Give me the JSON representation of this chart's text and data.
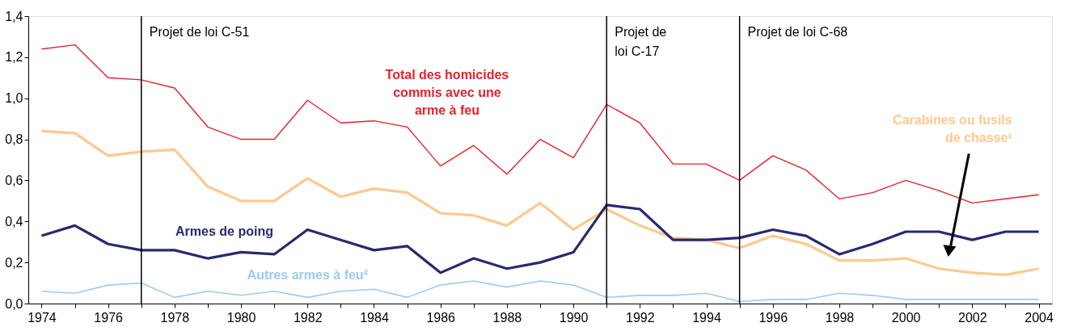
{
  "chart_data": {
    "type": "line",
    "x": [
      1974,
      1975,
      1976,
      1977,
      1978,
      1979,
      1980,
      1981,
      1982,
      1983,
      1984,
      1985,
      1986,
      1987,
      1988,
      1989,
      1990,
      1991,
      1992,
      1993,
      1994,
      1995,
      1996,
      1997,
      1998,
      1999,
      2000,
      2001,
      2002,
      2003,
      2004
    ],
    "series": [
      {
        "name": "Total des homicides commis avec une arme à feu",
        "color": "#e8202a",
        "values": [
          1.24,
          1.26,
          1.1,
          1.09,
          1.05,
          0.86,
          0.8,
          0.8,
          0.99,
          0.88,
          0.89,
          0.86,
          0.67,
          0.77,
          0.63,
          0.8,
          0.71,
          0.97,
          0.88,
          0.68,
          0.68,
          0.6,
          0.72,
          0.65,
          0.51,
          0.54,
          0.6,
          0.55,
          0.49,
          0.51,
          0.53
        ]
      },
      {
        "name": "Carabines ou fusils de chasse¹",
        "color": "#fdc98f",
        "values": [
          0.84,
          0.83,
          0.72,
          0.74,
          0.75,
          0.57,
          0.5,
          0.5,
          0.61,
          0.52,
          0.56,
          0.54,
          0.44,
          0.43,
          0.38,
          0.49,
          0.36,
          0.46,
          0.38,
          0.32,
          0.31,
          0.27,
          0.33,
          0.29,
          0.21,
          0.21,
          0.22,
          0.17,
          0.15,
          0.14,
          0.17
        ]
      },
      {
        "name": "Armes de poing",
        "color": "#262a6e",
        "values": [
          0.33,
          0.38,
          0.29,
          0.26,
          0.26,
          0.22,
          0.25,
          0.24,
          0.36,
          0.31,
          0.26,
          0.28,
          0.15,
          0.22,
          0.17,
          0.2,
          0.25,
          0.48,
          0.46,
          0.31,
          0.31,
          0.32,
          0.36,
          0.33,
          0.24,
          0.29,
          0.35,
          0.35,
          0.31,
          0.35,
          0.35
        ]
      },
      {
        "name": "Autres armes à feu²",
        "color": "#9ecbee",
        "values": [
          0.06,
          0.05,
          0.09,
          0.1,
          0.03,
          0.06,
          0.04,
          0.06,
          0.03,
          0.06,
          0.07,
          0.03,
          0.09,
          0.11,
          0.08,
          0.11,
          0.09,
          0.03,
          0.04,
          0.04,
          0.05,
          0.01,
          0.02,
          0.02,
          0.05,
          0.04,
          0.02,
          0.02,
          0.02,
          0.02,
          0.02
        ]
      }
    ],
    "ref_lines": [
      {
        "axis": "x",
        "value": 1977,
        "label": "Projet de loi C-51",
        "color": "#000000"
      },
      {
        "axis": "x",
        "value": 1991,
        "label": "Projet de\nloi C-17",
        "color": "#000000"
      },
      {
        "axis": "x",
        "value": 1995,
        "label": "Projet de loi C-68",
        "color": "#000000"
      }
    ],
    "xlim": [
      1973.6,
      2004.4
    ],
    "xticks": [
      1974,
      {
        "value": 1975,
        "label": null
      },
      1976,
      {
        "value": 1977,
        "label": null
      },
      1978,
      {
        "value": 1979,
        "label": null
      },
      1980,
      {
        "value": 1981,
        "label": null
      },
      1982,
      {
        "value": 1983,
        "label": null
      },
      1984,
      {
        "value": 1985,
        "label": null
      },
      1986,
      {
        "value": 1987,
        "label": null
      },
      1988,
      {
        "value": 1989,
        "label": null
      },
      1990,
      {
        "value": 1991,
        "label": null
      },
      1992,
      {
        "value": 1993,
        "label": null
      },
      1994,
      {
        "value": 1995,
        "label": null
      },
      1996,
      {
        "value": 1997,
        "label": null
      },
      1998,
      {
        "value": 1999,
        "label": null
      },
      2000,
      {
        "value": 2001,
        "label": null
      },
      2002,
      {
        "value": 2003,
        "label": null
      },
      2004
    ],
    "ylim": [
      0,
      1.4
    ],
    "yticks": [
      {
        "value": 0,
        "label": "0,0"
      },
      {
        "value": 0.2,
        "label": "0,2"
      },
      {
        "value": 0.4,
        "label": "0,4"
      },
      {
        "value": 0.6,
        "label": "0,6"
      },
      {
        "value": 0.8,
        "label": "0,8"
      },
      {
        "value": 1,
        "label": "1,0"
      },
      {
        "value": 1.2,
        "label": "1,2"
      },
      {
        "value": 1.4,
        "label": "1,4"
      }
    ],
    "grid": false,
    "marker": "none",
    "line_style": "solid"
  }
}
